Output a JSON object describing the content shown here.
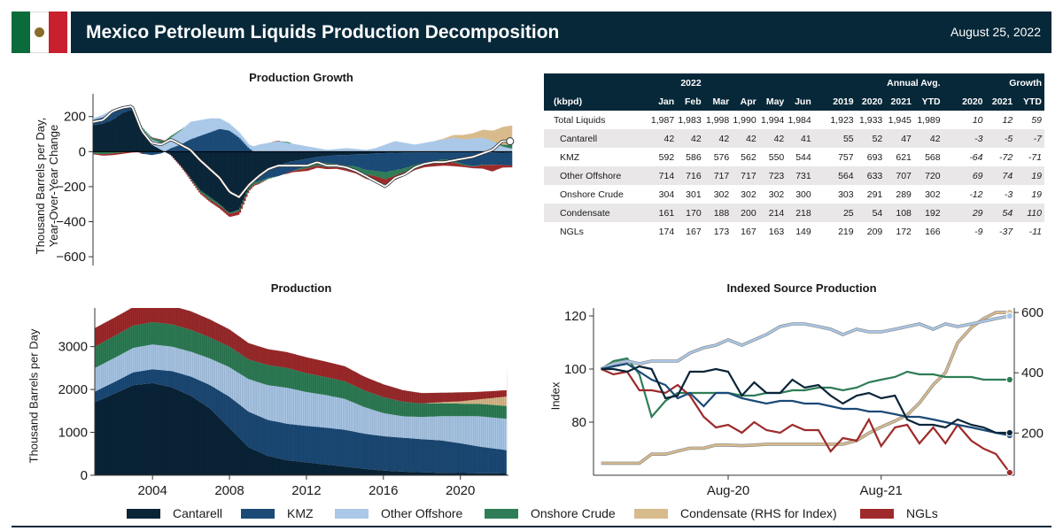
{
  "header": {
    "title": "Mexico Petroleum Liquids Production Decomposition",
    "date": "August 25, 2022"
  },
  "colors": {
    "Cantarell": "#0a2438",
    "KMZ": "#1b4a77",
    "Other Offshore": "#aac8e8",
    "Onshore Crude": "#2e7d56",
    "Condensate": "#d8bb8c",
    "NGLs": "#9e2a2b",
    "header": "#072839"
  },
  "legend": [
    {
      "name": "Cantarell",
      "color": "#0a2438"
    },
    {
      "name": "KMZ",
      "color": "#1b4a77"
    },
    {
      "name": "Other Offshore",
      "color": "#aac8e8"
    },
    {
      "name": "Onshore Crude",
      "color": "#2e7d56"
    },
    {
      "name": "Condensate (RHS for Index)",
      "color": "#d8bb8c"
    },
    {
      "name": "NGLs",
      "color": "#9e2a2b"
    }
  ],
  "table": {
    "group_headers": {
      "year": "2022",
      "annual": "Annual Avg.",
      "growth": "Growth"
    },
    "columns": [
      "(kbpd)",
      "Jan",
      "Feb",
      "Mar",
      "Apr",
      "May",
      "Jun",
      "2019",
      "2020",
      "2021",
      "YTD",
      "2020",
      "2021",
      "YTD"
    ],
    "rows": [
      {
        "name": "Total Liquids",
        "values": [
          "1,987",
          "1,983",
          "1,998",
          "1,990",
          "1,994",
          "1,984",
          "1,923",
          "1,933",
          "1,945",
          "1,989",
          "10",
          "12",
          "59"
        ]
      },
      {
        "name": "Cantarell",
        "values": [
          "42",
          "42",
          "42",
          "42",
          "42",
          "41",
          "55",
          "52",
          "47",
          "42",
          "-3",
          "-5",
          "-7"
        ]
      },
      {
        "name": "KMZ",
        "values": [
          "592",
          "586",
          "576",
          "562",
          "550",
          "544",
          "757",
          "693",
          "621",
          "568",
          "-64",
          "-72",
          "-71"
        ]
      },
      {
        "name": "Other Offshore",
        "values": [
          "714",
          "716",
          "717",
          "717",
          "723",
          "731",
          "564",
          "633",
          "707",
          "720",
          "69",
          "74",
          "19"
        ]
      },
      {
        "name": "Onshore Crude",
        "values": [
          "304",
          "301",
          "302",
          "302",
          "302",
          "300",
          "303",
          "291",
          "289",
          "302",
          "-12",
          "-3",
          "19"
        ]
      },
      {
        "name": "Condensate",
        "values": [
          "161",
          "170",
          "188",
          "200",
          "214",
          "218",
          "25",
          "54",
          "108",
          "192",
          "29",
          "54",
          "110"
        ]
      },
      {
        "name": "NGLs",
        "values": [
          "174",
          "167",
          "173",
          "167",
          "163",
          "149",
          "219",
          "209",
          "172",
          "166",
          "-9",
          "-37",
          "-11"
        ]
      }
    ]
  },
  "chart_data": [
    {
      "type": "bar",
      "title": "Production Growth",
      "ylabel": "Thousand Barrels per Day,\nYear-Over-Year Change",
      "ylim": [
        -650,
        330
      ],
      "yticks": [
        200,
        0,
        -200,
        -400,
        -600
      ],
      "yticklabels": [
        "200",
        "0",
        "−200",
        "−400",
        "−600"
      ],
      "x_range": [
        2001,
        2022.5
      ],
      "series_names": [
        "Cantarell",
        "KMZ",
        "Other Offshore",
        "Onshore Crude",
        "Condensate",
        "NGLs"
      ],
      "x": [
        2001,
        2001.5,
        2002,
        2002.5,
        2003,
        2003.5,
        2004,
        2004.5,
        2005,
        2005.5,
        2006,
        2006.5,
        2007,
        2007.5,
        2008,
        2008.5,
        2009,
        2009.5,
        2010,
        2010.5,
        2011,
        2011.5,
        2012,
        2012.5,
        2013,
        2013.5,
        2014,
        2014.5,
        2015,
        2015.5,
        2016,
        2016.5,
        2017,
        2017.5,
        2018,
        2018.5,
        2019,
        2019.5,
        2020,
        2020.5,
        2021,
        2021.5,
        2022,
        2022.4
      ],
      "series": [
        {
          "name": "Cantarell",
          "values": [
            150,
            160,
            180,
            220,
            240,
            120,
            40,
            10,
            -20,
            -80,
            -150,
            -220,
            -260,
            -300,
            -350,
            -330,
            -200,
            -150,
            -100,
            -80,
            -60,
            -50,
            -40,
            -30,
            -25,
            -20,
            -20,
            -15,
            -15,
            -10,
            -8,
            -6,
            -5,
            -5,
            -4,
            -4,
            -3,
            -3,
            -3,
            -3,
            -4,
            -5,
            -6,
            -7
          ]
        },
        {
          "name": "KMZ",
          "values": [
            30,
            35,
            40,
            30,
            20,
            -10,
            -20,
            -10,
            20,
            40,
            70,
            90,
            110,
            130,
            120,
            80,
            20,
            -20,
            -50,
            -60,
            -60,
            -50,
            -40,
            -30,
            -40,
            -50,
            -60,
            -70,
            -90,
            -100,
            -110,
            -100,
            -90,
            -70,
            -60,
            -50,
            -40,
            -50,
            -70,
            -80,
            -70,
            -70,
            -70,
            -72
          ]
        },
        {
          "name": "Other Offshore",
          "values": [
            10,
            15,
            20,
            10,
            5,
            15,
            30,
            40,
            60,
            80,
            100,
            90,
            80,
            60,
            40,
            30,
            20,
            40,
            50,
            60,
            50,
            40,
            30,
            20,
            10,
            15,
            20,
            15,
            10,
            20,
            40,
            60,
            50,
            40,
            50,
            60,
            70,
            80,
            70,
            75,
            80,
            60,
            30,
            19
          ]
        },
        {
          "name": "Onshore Crude",
          "values": [
            -10,
            -15,
            -10,
            -5,
            0,
            5,
            10,
            15,
            10,
            5,
            -5,
            -10,
            -15,
            -10,
            -5,
            -10,
            -15,
            -10,
            -5,
            0,
            5,
            -5,
            -15,
            -20,
            -25,
            -20,
            -15,
            -20,
            -25,
            -30,
            -40,
            -30,
            -20,
            -15,
            -10,
            -10,
            -12,
            -10,
            -5,
            -3,
            -3,
            -2,
            10,
            19
          ]
        },
        {
          "name": "Condensate",
          "values": [
            0,
            0,
            0,
            0,
            0,
            0,
            0,
            0,
            0,
            0,
            0,
            0,
            0,
            0,
            0,
            0,
            0,
            0,
            0,
            0,
            0,
            0,
            0,
            0,
            0,
            0,
            0,
            0,
            0,
            0,
            0,
            0,
            0,
            0,
            0,
            0,
            5,
            15,
            25,
            30,
            45,
            60,
            100,
            110
          ]
        },
        {
          "name": "NGLs",
          "values": [
            -5,
            -8,
            -10,
            -8,
            -5,
            -3,
            2,
            4,
            -2,
            -6,
            -8,
            -10,
            -12,
            -15,
            -18,
            -20,
            -10,
            -5,
            0,
            3,
            -5,
            -10,
            -15,
            -12,
            -10,
            -8,
            -15,
            -20,
            -25,
            -30,
            -30,
            -25,
            -20,
            -15,
            -15,
            -20,
            -25,
            -20,
            -10,
            -9,
            -20,
            -37,
            -15,
            -11
          ]
        }
      ],
      "total_line": {
        "name": "Total",
        "values": [
          170,
          180,
          230,
          250,
          260,
          120,
          50,
          40,
          70,
          40,
          10,
          -50,
          -100,
          -150,
          -230,
          -260,
          -190,
          -140,
          -100,
          -80,
          -80,
          -80,
          -80,
          -60,
          -80,
          -80,
          -90,
          -110,
          -140,
          -170,
          -200,
          -150,
          -130,
          -90,
          -70,
          -60,
          -60,
          -50,
          -40,
          -30,
          -10,
          10,
          60,
          59
        ]
      }
    },
    {
      "type": "area",
      "title": "Production",
      "ylabel": "Thousand Barrels per Day",
      "ylim": [
        0,
        3900
      ],
      "yticks": [
        0,
        1000,
        2000,
        3000
      ],
      "xticks": [
        2004,
        2008,
        2012,
        2016,
        2020
      ],
      "x_range": [
        2001,
        2022.5
      ],
      "x": [
        2001,
        2002,
        2003,
        2004,
        2005,
        2006,
        2007,
        2008,
        2009,
        2010,
        2011,
        2012,
        2013,
        2014,
        2015,
        2016,
        2017,
        2018,
        2019,
        2020,
        2021,
        2022.4
      ],
      "series": [
        {
          "name": "Cantarell",
          "values": [
            1700,
            1900,
            2100,
            2150,
            2050,
            1850,
            1550,
            1100,
            650,
            450,
            350,
            300,
            250,
            200,
            150,
            110,
            85,
            70,
            55,
            52,
            47,
            41
          ]
        },
        {
          "name": "KMZ",
          "values": [
            250,
            270,
            300,
            320,
            380,
            450,
            550,
            730,
            830,
            840,
            850,
            850,
            860,
            860,
            820,
            800,
            790,
            770,
            757,
            693,
            621,
            544
          ]
        },
        {
          "name": "Other Offshore",
          "values": [
            550,
            560,
            570,
            580,
            570,
            580,
            620,
            690,
            760,
            810,
            840,
            790,
            760,
            720,
            620,
            540,
            500,
            520,
            564,
            633,
            707,
            731
          ]
        },
        {
          "name": "Onshore Crude",
          "values": [
            500,
            510,
            520,
            520,
            520,
            510,
            490,
            480,
            460,
            470,
            460,
            440,
            420,
            410,
            390,
            370,
            340,
            315,
            303,
            291,
            289,
            300
          ]
        },
        {
          "name": "Condensate",
          "values": [
            0,
            0,
            0,
            0,
            0,
            0,
            0,
            0,
            0,
            0,
            0,
            0,
            0,
            0,
            0,
            0,
            0,
            0,
            25,
            54,
            108,
            218
          ]
        },
        {
          "name": "NGLs",
          "values": [
            430,
            430,
            430,
            430,
            430,
            430,
            420,
            400,
            380,
            370,
            370,
            370,
            360,
            350,
            320,
            300,
            270,
            240,
            219,
            209,
            172,
            149
          ]
        }
      ]
    },
    {
      "type": "line",
      "title": "Indexed Source Production",
      "ylabel": "Index",
      "ylim": [
        60,
        123
      ],
      "yticks": [
        80,
        100,
        120
      ],
      "y2lim": [
        60,
        615
      ],
      "y2ticks": [
        200,
        400,
        600
      ],
      "x_range": [
        2019.7,
        2022.45
      ],
      "xticks": [
        2020.58,
        2021.58
      ],
      "xticklabels": [
        "Aug-20",
        "Aug-21"
      ],
      "x": [
        2019.75,
        2019.83,
        2019.92,
        2020.0,
        2020.08,
        2020.17,
        2020.25,
        2020.33,
        2020.42,
        2020.5,
        2020.58,
        2020.67,
        2020.75,
        2020.83,
        2020.92,
        2021.0,
        2021.08,
        2021.17,
        2021.25,
        2021.33,
        2021.42,
        2021.5,
        2021.58,
        2021.67,
        2021.75,
        2021.83,
        2021.92,
        2022.0,
        2022.08,
        2022.17,
        2022.25,
        2022.33,
        2022.42
      ],
      "series": [
        {
          "name": "Cantarell",
          "axis": "left",
          "values": [
            100,
            100,
            99,
            101,
            100,
            89,
            90,
            99,
            99,
            100,
            99,
            90,
            95,
            91,
            91,
            96,
            93,
            94,
            90,
            87,
            90,
            91,
            89,
            90,
            81,
            79,
            79,
            78,
            81,
            79,
            78,
            76,
            76
          ]
        },
        {
          "name": "KMZ",
          "axis": "left",
          "values": [
            100,
            101,
            102,
            99,
            96,
            94,
            89,
            91,
            86,
            91,
            91,
            89,
            88,
            87,
            88,
            88,
            87,
            87,
            86,
            85,
            85,
            84,
            84,
            83,
            82,
            82,
            81,
            80,
            79,
            78,
            77,
            76,
            75
          ]
        },
        {
          "name": "Other Offshore",
          "axis": "left",
          "values": [
            100,
            102,
            103,
            102,
            103,
            103,
            103,
            106,
            108,
            109,
            111,
            109,
            111,
            113,
            116,
            117,
            117,
            116,
            115,
            113,
            115,
            114,
            114,
            115,
            116,
            117,
            115,
            117,
            116,
            117,
            118,
            119,
            120
          ]
        },
        {
          "name": "Onshore Crude",
          "axis": "left",
          "values": [
            100,
            103,
            104,
            98,
            82,
            88,
            91,
            91,
            91,
            91,
            91,
            90,
            90,
            91,
            91,
            92,
            92,
            93,
            93,
            92,
            93,
            95,
            96,
            97,
            99,
            98,
            98,
            97,
            97,
            97,
            96,
            96,
            96
          ]
        },
        {
          "name": "Condensate",
          "axis": "right",
          "values": [
            100,
            100,
            100,
            100,
            130,
            130,
            140,
            150,
            150,
            160,
            160,
            158,
            160,
            163,
            163,
            163,
            163,
            163,
            163,
            163,
            175,
            200,
            220,
            240,
            260,
            300,
            360,
            400,
            500,
            550,
            580,
            600,
            600
          ]
        },
        {
          "name": "NGLs",
          "axis": "left",
          "values": [
            100,
            98,
            99,
            92,
            92,
            91,
            94,
            90,
            82,
            78,
            79,
            76,
            80,
            77,
            76,
            79,
            77,
            77,
            69,
            74,
            73,
            81,
            71,
            78,
            79,
            72,
            78,
            72,
            79,
            73,
            70,
            68,
            61
          ]
        }
      ]
    }
  ]
}
